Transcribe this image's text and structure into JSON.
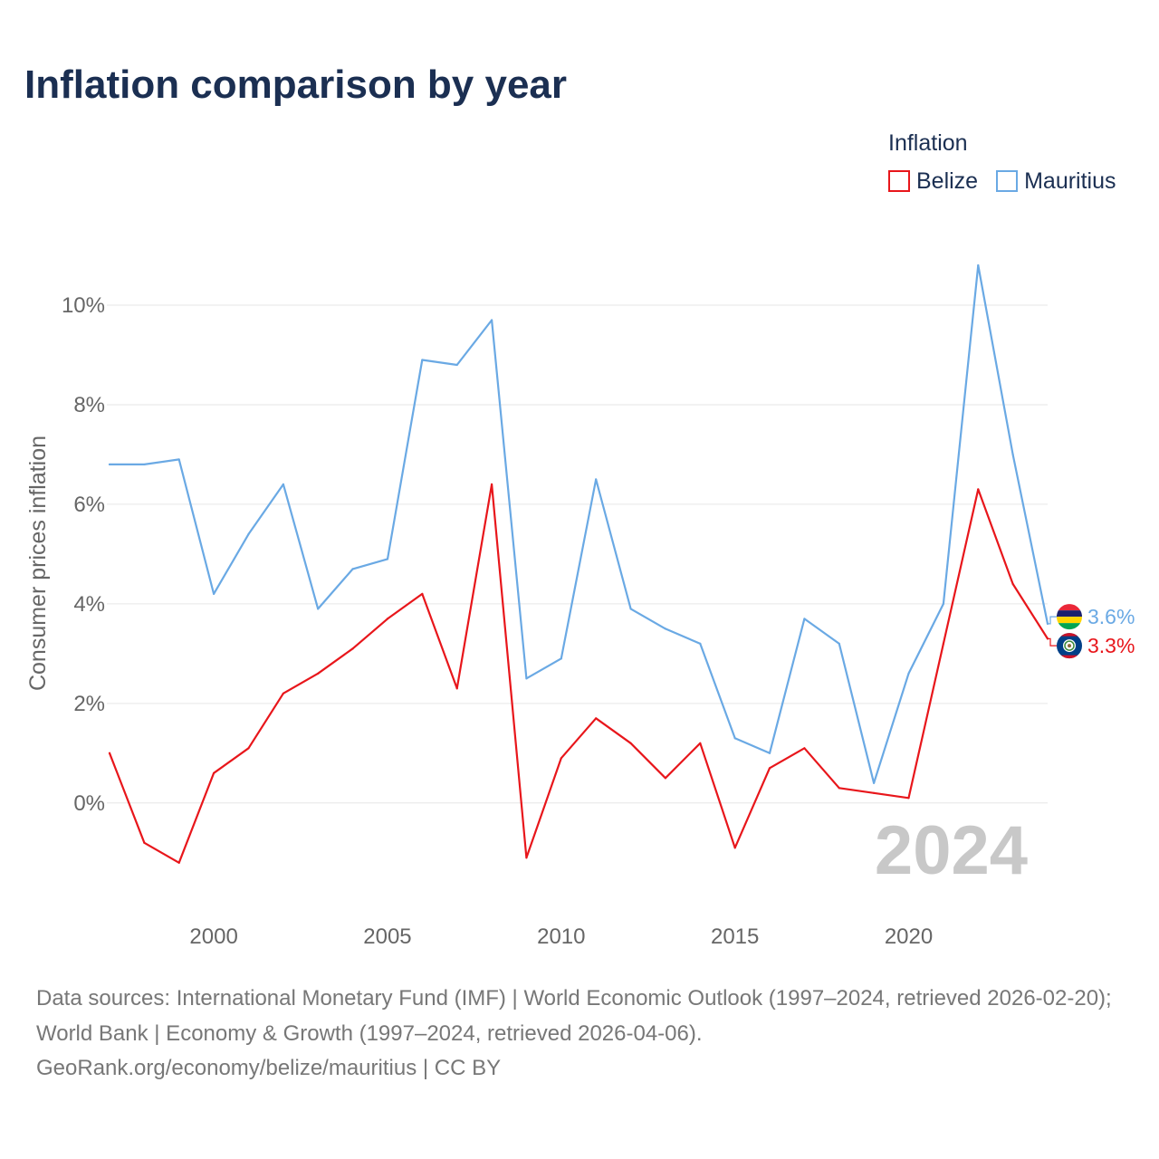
{
  "chart_data": {
    "type": "line",
    "title": "Inflation comparison by year",
    "xlabel": "",
    "ylabel": "Consumer prices inflation",
    "legend_title": "Inflation",
    "legend_position": "top-right",
    "grid": true,
    "x": [
      1997,
      1998,
      1999,
      2000,
      2001,
      2002,
      2003,
      2004,
      2005,
      2006,
      2007,
      2008,
      2009,
      2010,
      2011,
      2012,
      2013,
      2014,
      2015,
      2016,
      2017,
      2018,
      2019,
      2020,
      2021,
      2022,
      2023,
      2024
    ],
    "xlim": [
      1997,
      2024
    ],
    "ylim": [
      -2.15,
      11.2
    ],
    "xticks": [
      2000,
      2005,
      2010,
      2015,
      2020
    ],
    "xtick_labels": [
      "2000",
      "2005",
      "2010",
      "2015",
      "2020"
    ],
    "yticks": [
      0,
      2,
      4,
      6,
      8,
      10
    ],
    "ytick_labels": [
      "0%",
      "2%",
      "4%",
      "6%",
      "8%",
      "10%"
    ],
    "year_label": "2024",
    "series": [
      {
        "name": "Belize",
        "color": "#e8161b",
        "flag_icon": "belize-flag-icon",
        "end_label": "3.3%",
        "values": [
          1.0,
          -0.8,
          -1.2,
          0.6,
          1.1,
          2.2,
          2.6,
          3.1,
          3.7,
          4.2,
          2.3,
          6.4,
          -1.1,
          0.9,
          1.7,
          1.2,
          0.5,
          1.2,
          -0.9,
          0.7,
          1.1,
          0.3,
          0.2,
          0.1,
          3.2,
          6.3,
          4.4,
          3.3
        ]
      },
      {
        "name": "Mauritius",
        "color": "#6aa9e4",
        "flag_icon": "mauritius-flag-icon",
        "end_label": "3.6%",
        "values": [
          6.8,
          6.8,
          6.9,
          4.2,
          5.4,
          6.4,
          3.9,
          4.7,
          4.9,
          8.9,
          8.8,
          9.7,
          2.5,
          2.9,
          6.5,
          3.9,
          3.5,
          3.2,
          1.3,
          1.0,
          3.7,
          3.2,
          0.4,
          2.6,
          4.0,
          10.8,
          7.0,
          3.6
        ]
      }
    ]
  },
  "footer": {
    "sources": "Data sources: International Monetary Fund (IMF) | World Economic Outlook (1997–2024, retrieved 2026-02-20); World Bank | Economy & Growth (1997–2024, retrieved 2026-04-06).",
    "credit": "GeoRank.org/economy/belize/mauritius | CC BY"
  }
}
